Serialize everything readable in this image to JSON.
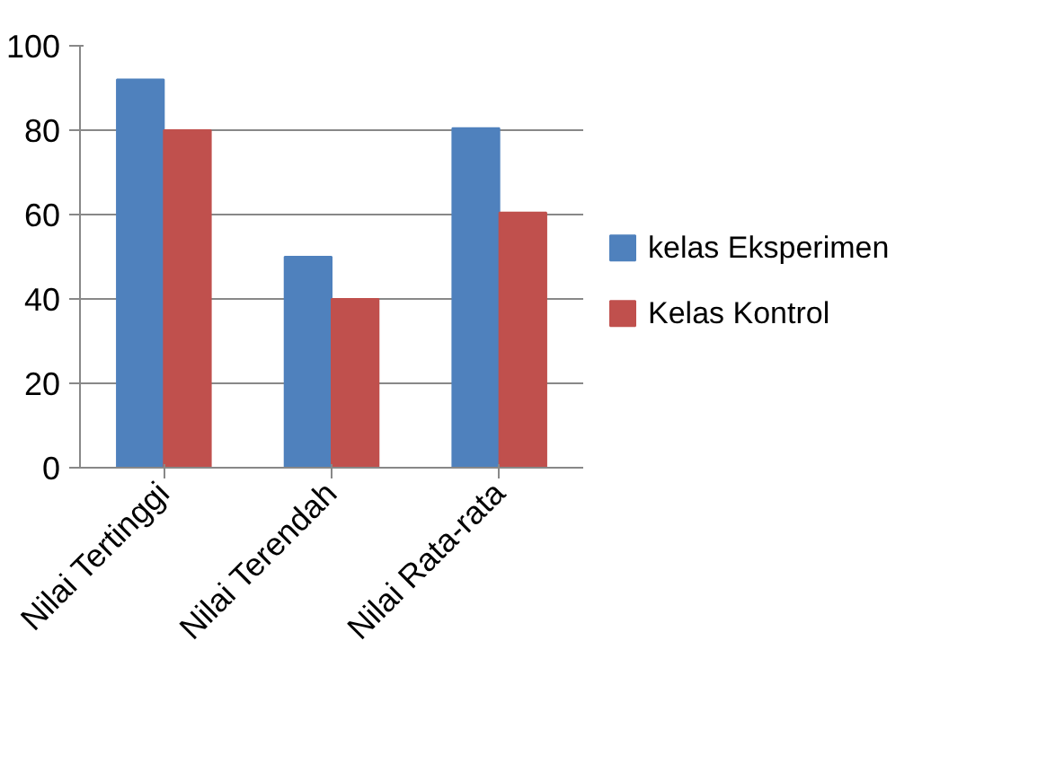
{
  "chart_data": {
    "type": "bar",
    "categories": [
      "Nilai Tertinggi",
      "Nilai Terendah",
      "Nilai Rata-rata"
    ],
    "series": [
      {
        "name": "kelas Eksperimen",
        "color": "#4f81bd",
        "values": [
          92,
          50,
          80.5
        ]
      },
      {
        "name": "Kelas Kontrol",
        "color": "#c0504d",
        "values": [
          80,
          40,
          60.5
        ]
      }
    ],
    "ylim": [
      0,
      100
    ],
    "yticks": [
      0,
      20,
      40,
      60,
      80,
      100
    ],
    "grid": "y",
    "legend": "right"
  }
}
